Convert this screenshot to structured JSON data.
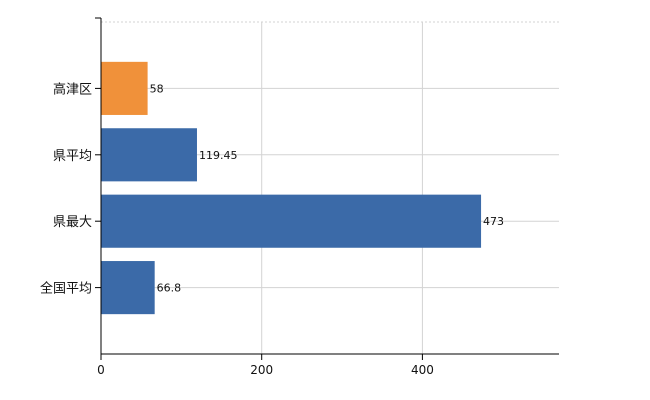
{
  "chart_data": {
    "type": "bar",
    "orientation": "horizontal",
    "categories": [
      "高津区",
      "県平均",
      "県最大",
      "全国平均"
    ],
    "values": [
      58,
      119.45,
      473,
      66.8
    ],
    "value_labels": [
      "58",
      "119.45",
      "473",
      "66.8"
    ],
    "colors": [
      "#f0913a",
      "#3b6aa8",
      "#3b6aa8",
      "#3b6aa8"
    ],
    "xlim": [
      0,
      570
    ],
    "xticks": [
      0,
      200,
      400
    ],
    "xtick_labels": [
      "0",
      "200",
      "400"
    ],
    "grid": true,
    "legend": "none"
  }
}
